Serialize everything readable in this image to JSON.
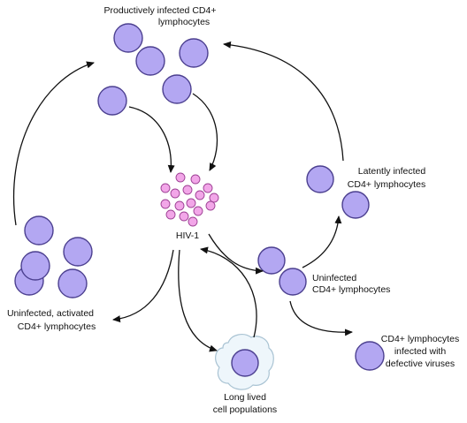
{
  "labels": {
    "productive_line1": "Productively infected CD4+",
    "productive_line2": "lymphocytes",
    "latent_line1": "Latently infected",
    "latent_line2": "CD4+ lymphocytes",
    "hiv": "HIV-1",
    "uninfected_line1": "Uninfected",
    "uninfected_line2": "CD4+ lymphocytes",
    "activated_line1": "Uninfected, activated",
    "activated_line2": "CD4+ lymphocytes",
    "longlived_line1": "Long lived",
    "longlived_line2": "cell populations",
    "defective_line1": "CD4+ lymphocytes",
    "defective_line2": "infected with",
    "defective_line3": "defective viruses"
  },
  "colors": {
    "cell_fill": "#b3a7f2",
    "cell_stroke": "#4b3f8f",
    "virion_fill": "#f2a6e8",
    "virion_stroke": "#9c3f93"
  }
}
